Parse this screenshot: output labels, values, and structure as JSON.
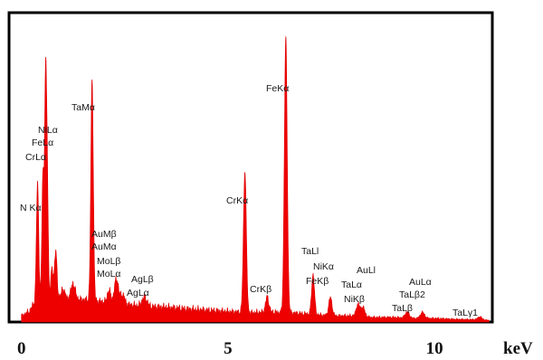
{
  "chart_data": {
    "type": "area",
    "title": "",
    "xlabel": "keV",
    "ylabel": "",
    "xlim": [
      -0.3,
      11.4
    ],
    "ylim": [
      0,
      100
    ],
    "grid": false,
    "legend": "none",
    "colors": {
      "fill": "#ee0000",
      "frame": "#000000",
      "background": "#ffffff"
    },
    "x_ticks": [
      {
        "value": 0,
        "label": "0"
      },
      {
        "value": 5,
        "label": "5"
      },
      {
        "value": 10,
        "label": "10"
      }
    ],
    "baseline": [
      [
        0.0,
        2.0
      ],
      [
        0.2,
        3.5
      ],
      [
        0.3,
        6.0
      ],
      [
        0.5,
        8.0
      ],
      [
        0.8,
        8.0
      ],
      [
        1.2,
        7.5
      ],
      [
        1.7,
        7.0
      ],
      [
        2.3,
        6.0
      ],
      [
        3.0,
        5.0
      ],
      [
        3.5,
        4.8
      ],
      [
        4.0,
        4.2
      ],
      [
        4.5,
        3.8
      ],
      [
        5.0,
        3.4
      ],
      [
        5.5,
        3.0
      ],
      [
        6.0,
        3.2
      ],
      [
        6.5,
        3.0
      ],
      [
        7.0,
        2.5
      ],
      [
        7.5,
        2.0
      ],
      [
        8.0,
        2.0
      ],
      [
        8.5,
        1.5
      ],
      [
        9.0,
        1.5
      ],
      [
        9.5,
        1.2
      ],
      [
        10.0,
        1.2
      ],
      [
        10.5,
        0.9
      ],
      [
        11.0,
        0.8
      ],
      [
        11.3,
        0.6
      ]
    ],
    "peaks": [
      {
        "x": 0.39,
        "y": 38,
        "w": 0.028
      },
      {
        "x": 0.52,
        "y": 40,
        "w": 0.025
      },
      {
        "x": 0.58,
        "y": 60,
        "w": 0.022
      },
      {
        "x": 0.62,
        "y": 45,
        "w": 0.025
      },
      {
        "x": 0.74,
        "y": 9,
        "w": 0.03
      },
      {
        "x": 0.83,
        "y": 15,
        "w": 0.03
      },
      {
        "x": 1.01,
        "y": 3,
        "w": 0.04
      },
      {
        "x": 1.25,
        "y": 5,
        "w": 0.05
      },
      {
        "x": 1.71,
        "y": 72,
        "w": 0.03
      },
      {
        "x": 2.12,
        "y": 4,
        "w": 0.04
      },
      {
        "x": 2.3,
        "y": 8,
        "w": 0.05
      },
      {
        "x": 2.45,
        "y": 3,
        "w": 0.05
      },
      {
        "x": 2.98,
        "y": 3,
        "w": 0.06
      },
      {
        "x": 5.41,
        "y": 46,
        "w": 0.035
      },
      {
        "x": 5.95,
        "y": 5,
        "w": 0.04
      },
      {
        "x": 6.4,
        "y": 89,
        "w": 0.035
      },
      {
        "x": 7.06,
        "y": 13,
        "w": 0.035
      },
      {
        "x": 7.48,
        "y": 6,
        "w": 0.04
      },
      {
        "x": 8.15,
        "y": 4,
        "w": 0.045
      },
      {
        "x": 8.27,
        "y": 3,
        "w": 0.045
      },
      {
        "x": 9.34,
        "y": 2,
        "w": 0.05
      },
      {
        "x": 9.71,
        "y": 2,
        "w": 0.05
      },
      {
        "x": 11.1,
        "y": 1,
        "w": 0.05
      }
    ],
    "annotations": [
      {
        "text": "N Kα",
        "x": 0.39
      },
      {
        "text": "CrLα",
        "x": 0.58
      },
      {
        "text": "FeLα",
        "x": 0.58
      },
      {
        "text": "NiLα",
        "x": 0.58
      },
      {
        "text": "TaMα",
        "x": 1.71
      },
      {
        "text": "AuMβ",
        "x": 2.2
      },
      {
        "text": "AuMα",
        "x": 2.12
      },
      {
        "text": "MoLβ",
        "x": 2.4
      },
      {
        "text": "MoLα",
        "x": 2.3
      },
      {
        "text": "AgLβ",
        "x": 3.15
      },
      {
        "text": "AgLα",
        "x": 2.98
      },
      {
        "text": "CrKα",
        "x": 5.41
      },
      {
        "text": "CrKβ",
        "x": 5.95
      },
      {
        "text": "FeKα",
        "x": 6.4
      },
      {
        "text": "TaLl",
        "x": 7.17
      },
      {
        "text": "NiKα",
        "x": 7.48
      },
      {
        "text": "FeKβ",
        "x": 7.06
      },
      {
        "text": "AuLl",
        "x": 8.49
      },
      {
        "text": "TaLα",
        "x": 8.15
      },
      {
        "text": "NiKβ",
        "x": 8.27
      },
      {
        "text": "AuLα",
        "x": 9.71
      },
      {
        "text": "TaLβ2",
        "x": 9.71
      },
      {
        "text": "TaLβ",
        "x": 9.34
      },
      {
        "text": "TaLγ1",
        "x": 11.0
      }
    ]
  }
}
